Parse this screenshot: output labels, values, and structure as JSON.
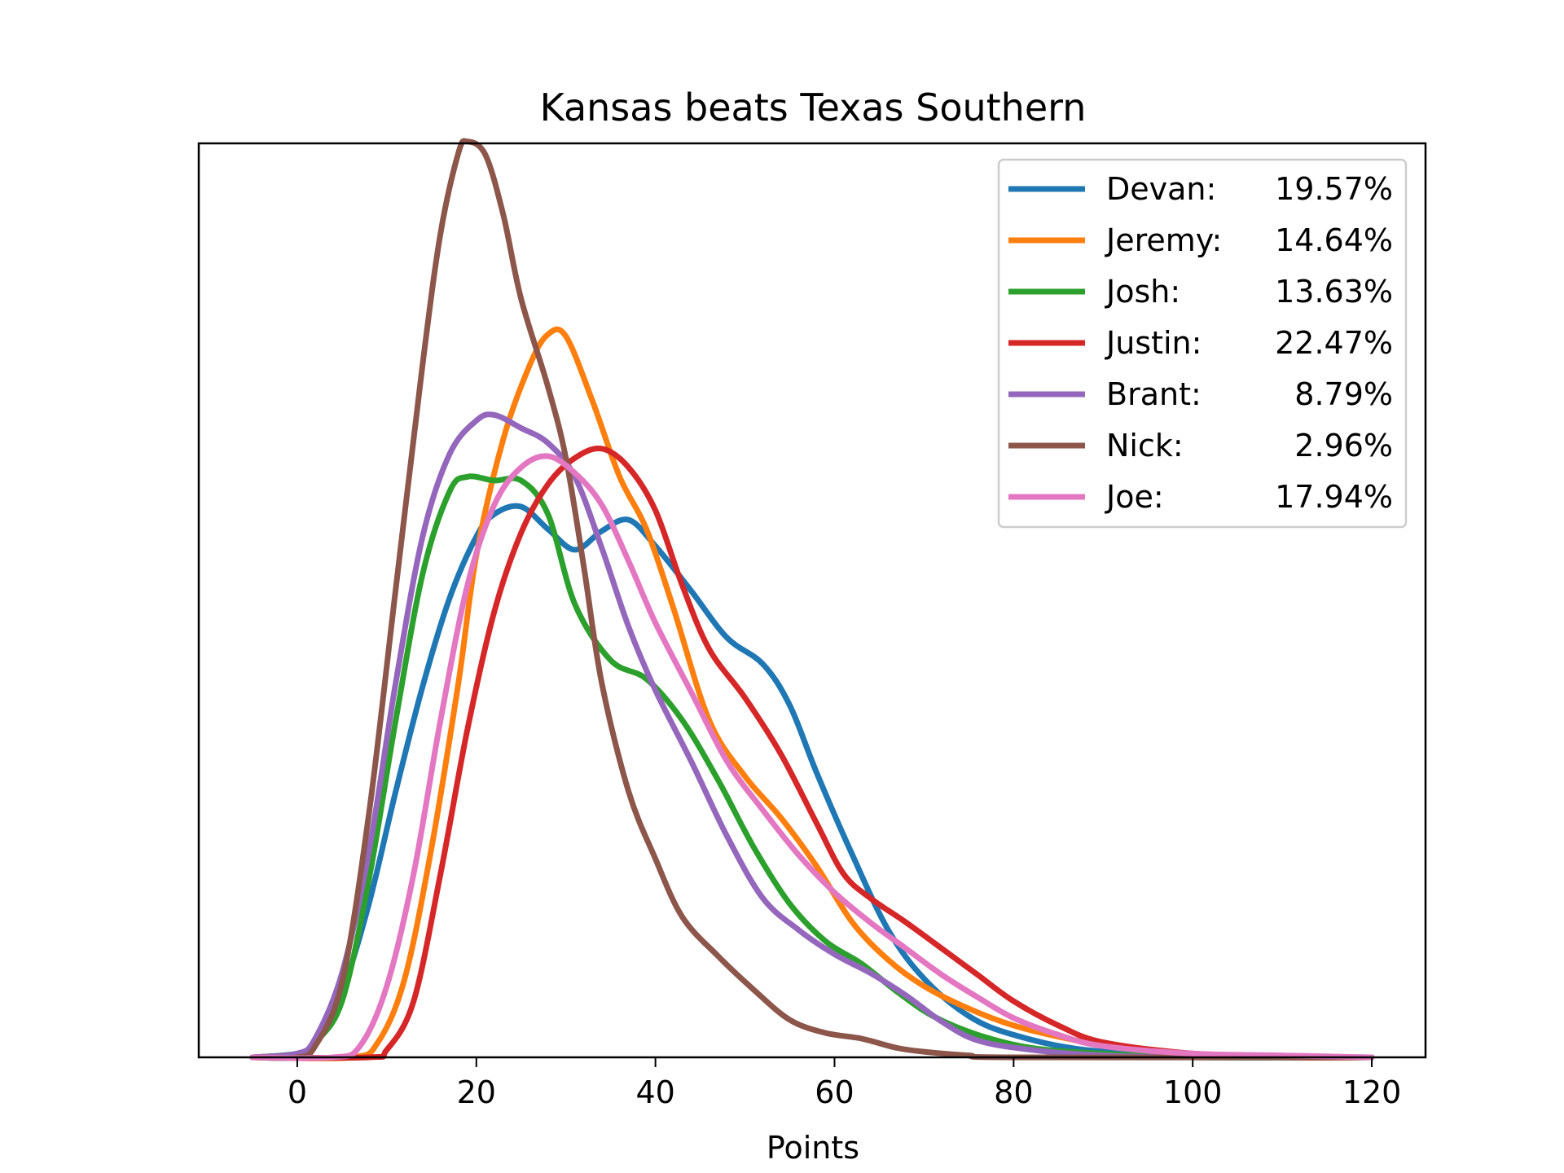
{
  "chart_data": {
    "type": "line",
    "title": "Kansas beats Texas Southern",
    "xlabel": "Points",
    "ylabel": "",
    "xlim": [
      -11,
      126
    ],
    "ylim": [
      0,
      0.0488
    ],
    "y_ticks_shown": false,
    "grid": false,
    "legend_position": "top-right",
    "x_ticks": [
      {
        "value": 0,
        "label": "0"
      },
      {
        "value": 20,
        "label": "20"
      },
      {
        "value": 40,
        "label": "40"
      },
      {
        "value": 60,
        "label": "60"
      },
      {
        "value": 80,
        "label": "80"
      },
      {
        "value": 100,
        "label": "100"
      },
      {
        "value": 120,
        "label": "120"
      }
    ],
    "series": [
      {
        "name": "Devan",
        "pct": "19.57%",
        "color": "#1f77b4",
        "points": [
          [
            -5,
            0
          ],
          [
            0,
            0.0002
          ],
          [
            2,
            0.0008
          ],
          [
            5,
            0.0035
          ],
          [
            8,
            0.0082
          ],
          [
            11,
            0.0142
          ],
          [
            14,
            0.0198
          ],
          [
            17,
            0.0245
          ],
          [
            20,
            0.0278
          ],
          [
            22,
            0.029
          ],
          [
            25,
            0.0294
          ],
          [
            28,
            0.0282
          ],
          [
            31,
            0.0271
          ],
          [
            34,
            0.0281
          ],
          [
            37,
            0.0287
          ],
          [
            40,
            0.0273
          ],
          [
            44,
            0.0249
          ],
          [
            48,
            0.0224
          ],
          [
            52,
            0.021
          ],
          [
            55,
            0.0188
          ],
          [
            58,
            0.0152
          ],
          [
            62,
            0.0108
          ],
          [
            66,
            0.0068
          ],
          [
            70,
            0.0042
          ],
          [
            75,
            0.0022
          ],
          [
            80,
            0.0012
          ],
          [
            88,
            0.0004
          ],
          [
            100,
            0.0001
          ],
          [
            120,
            0
          ]
        ]
      },
      {
        "name": "Jeremy",
        "pct": "14.64%",
        "color": "#ff7f0e",
        "points": [
          [
            -5,
            0
          ],
          [
            6,
            0
          ],
          [
            9,
            0.0008
          ],
          [
            12,
            0.0042
          ],
          [
            15,
            0.0112
          ],
          [
            18,
            0.02
          ],
          [
            20,
            0.0268
          ],
          [
            23,
            0.033
          ],
          [
            26,
            0.037
          ],
          [
            28,
            0.0386
          ],
          [
            30,
            0.0385
          ],
          [
            33,
            0.035
          ],
          [
            36,
            0.031
          ],
          [
            39,
            0.0282
          ],
          [
            42,
            0.024
          ],
          [
            46,
            0.018
          ],
          [
            50,
            0.015
          ],
          [
            54,
            0.0128
          ],
          [
            58,
            0.0102
          ],
          [
            62,
            0.0072
          ],
          [
            66,
            0.0052
          ],
          [
            70,
            0.0038
          ],
          [
            75,
            0.0026
          ],
          [
            80,
            0.0017
          ],
          [
            86,
            0.001
          ],
          [
            92,
            0.0005
          ],
          [
            100,
            0.0002
          ],
          [
            110,
            0
          ],
          [
            120,
            0
          ]
        ]
      },
      {
        "name": "Josh",
        "pct": "13.63%",
        "color": "#2ca02c",
        "points": [
          [
            -5,
            0
          ],
          [
            0,
            0.0002
          ],
          [
            2,
            0.0008
          ],
          [
            5,
            0.003
          ],
          [
            8,
            0.0095
          ],
          [
            11,
            0.018
          ],
          [
            14,
            0.0258
          ],
          [
            17,
            0.0302
          ],
          [
            19,
            0.031
          ],
          [
            22,
            0.0308
          ],
          [
            25,
            0.0308
          ],
          [
            28,
            0.029
          ],
          [
            31,
            0.0242
          ],
          [
            35,
            0.0212
          ],
          [
            39,
            0.0202
          ],
          [
            43,
            0.018
          ],
          [
            47,
            0.0148
          ],
          [
            51,
            0.0112
          ],
          [
            55,
            0.0082
          ],
          [
            59,
            0.0062
          ],
          [
            63,
            0.005
          ],
          [
            67,
            0.0035
          ],
          [
            71,
            0.0022
          ],
          [
            76,
            0.0012
          ],
          [
            82,
            0.0005
          ],
          [
            90,
            0.0002
          ],
          [
            100,
            0
          ],
          [
            120,
            0
          ]
        ]
      },
      {
        "name": "Justin",
        "pct": "22.47%",
        "color": "#d62728",
        "points": [
          [
            -5,
            0
          ],
          [
            8,
            0
          ],
          [
            10,
            0.0004
          ],
          [
            13,
            0.003
          ],
          [
            16,
            0.0098
          ],
          [
            19,
            0.0175
          ],
          [
            22,
            0.0238
          ],
          [
            25,
            0.028
          ],
          [
            28,
            0.0306
          ],
          [
            31,
            0.032
          ],
          [
            34,
            0.0325
          ],
          [
            37,
            0.0315
          ],
          [
            40,
            0.0292
          ],
          [
            43,
            0.0252
          ],
          [
            46,
            0.0218
          ],
          [
            50,
            0.0192
          ],
          [
            54,
            0.0162
          ],
          [
            58,
            0.0125
          ],
          [
            61,
            0.0098
          ],
          [
            64,
            0.0085
          ],
          [
            68,
            0.0072
          ],
          [
            72,
            0.0058
          ],
          [
            76,
            0.0044
          ],
          [
            80,
            0.003
          ],
          [
            85,
            0.0017
          ],
          [
            90,
            0.0008
          ],
          [
            100,
            0.0002
          ],
          [
            110,
            0
          ],
          [
            120,
            0
          ]
        ]
      },
      {
        "name": "Brant",
        "pct": "8.79%",
        "color": "#9467bd",
        "points": [
          [
            -5,
            0
          ],
          [
            0,
            0.0002
          ],
          [
            2,
            0.001
          ],
          [
            5,
            0.0045
          ],
          [
            8,
            0.011
          ],
          [
            11,
            0.02
          ],
          [
            14,
            0.0278
          ],
          [
            17,
            0.0322
          ],
          [
            20,
            0.034
          ],
          [
            22,
            0.0343
          ],
          [
            25,
            0.0336
          ],
          [
            28,
            0.0328
          ],
          [
            31,
            0.031
          ],
          [
            34,
            0.0272
          ],
          [
            37,
            0.023
          ],
          [
            40,
            0.0196
          ],
          [
            44,
            0.0158
          ],
          [
            48,
            0.0118
          ],
          [
            52,
            0.0085
          ],
          [
            56,
            0.0068
          ],
          [
            60,
            0.0055
          ],
          [
            64,
            0.0045
          ],
          [
            68,
            0.0033
          ],
          [
            72,
            0.0019
          ],
          [
            76,
            0.0009
          ],
          [
            82,
            0.0004
          ],
          [
            90,
            0.0001
          ],
          [
            100,
            0
          ],
          [
            120,
            0
          ]
        ]
      },
      {
        "name": "Nick",
        "pct": "2.96%",
        "color": "#8c564b",
        "points": [
          [
            -5,
            0
          ],
          [
            0,
            0
          ],
          [
            2,
            0.0006
          ],
          [
            5,
            0.004
          ],
          [
            8,
            0.013
          ],
          [
            11,
            0.025
          ],
          [
            14,
            0.037
          ],
          [
            16,
            0.044
          ],
          [
            18,
            0.0483
          ],
          [
            19,
            0.0489
          ],
          [
            21,
            0.0482
          ],
          [
            23,
            0.045
          ],
          [
            25,
            0.0405
          ],
          [
            28,
            0.0358
          ],
          [
            30,
            0.032
          ],
          [
            32,
            0.0262
          ],
          [
            34,
            0.02
          ],
          [
            37,
            0.0142
          ],
          [
            40,
            0.0106
          ],
          [
            43,
            0.0075
          ],
          [
            47,
            0.0054
          ],
          [
            51,
            0.0036
          ],
          [
            55,
            0.002
          ],
          [
            59,
            0.0013
          ],
          [
            63,
            0.001
          ],
          [
            67,
            0.0005
          ],
          [
            70,
            0.0003
          ],
          [
            75,
            0.0001
          ],
          [
            80,
            0
          ],
          [
            120,
            0
          ]
        ]
      },
      {
        "name": "Joe",
        "pct": "17.94%",
        "color": "#e377c2",
        "points": [
          [
            -5,
            0
          ],
          [
            4,
            0
          ],
          [
            7,
            0.0006
          ],
          [
            10,
            0.0038
          ],
          [
            13,
            0.0098
          ],
          [
            16,
            0.018
          ],
          [
            19,
            0.0252
          ],
          [
            22,
            0.0295
          ],
          [
            25,
            0.0315
          ],
          [
            28,
            0.0321
          ],
          [
            31,
            0.0312
          ],
          [
            34,
            0.0295
          ],
          [
            37,
            0.0265
          ],
          [
            40,
            0.0232
          ],
          [
            44,
            0.0195
          ],
          [
            48,
            0.0158
          ],
          [
            52,
            0.0132
          ],
          [
            56,
            0.0108
          ],
          [
            60,
            0.0088
          ],
          [
            64,
            0.0072
          ],
          [
            68,
            0.0058
          ],
          [
            72,
            0.0044
          ],
          [
            76,
            0.0032
          ],
          [
            80,
            0.0021
          ],
          [
            85,
            0.0012
          ],
          [
            90,
            0.0006
          ],
          [
            100,
            0.0002
          ],
          [
            110,
            0.0001
          ],
          [
            120,
            0
          ]
        ]
      }
    ]
  }
}
